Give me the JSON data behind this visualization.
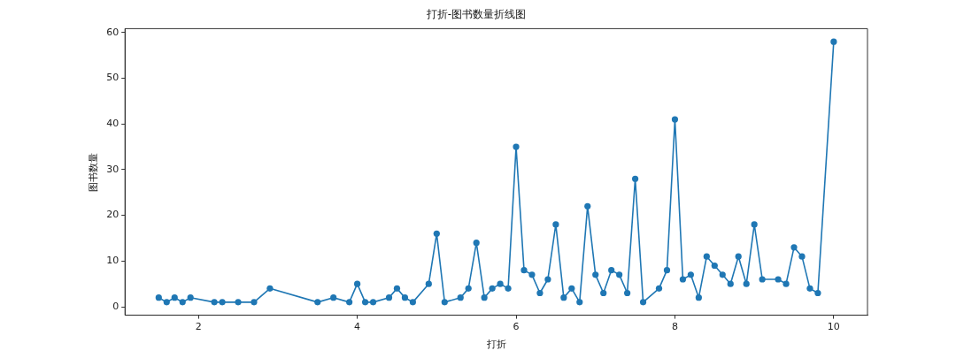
{
  "chart_data": {
    "type": "line",
    "title": "打折-图书数量折线图",
    "xlabel": "打折",
    "ylabel": "图书数量",
    "x": [
      1.5,
      1.6,
      1.7,
      1.8,
      1.9,
      2.2,
      2.3,
      2.5,
      2.7,
      2.9,
      3.5,
      3.7,
      3.9,
      4.0,
      4.1,
      4.2,
      4.4,
      4.5,
      4.6,
      4.7,
      4.9,
      5.0,
      5.1,
      5.3,
      5.4,
      5.5,
      5.6,
      5.7,
      5.8,
      5.9,
      6.0,
      6.1,
      6.2,
      6.3,
      6.4,
      6.5,
      6.6,
      6.7,
      6.8,
      6.9,
      7.0,
      7.1,
      7.2,
      7.3,
      7.4,
      7.5,
      7.6,
      7.8,
      7.9,
      8.0,
      8.1,
      8.2,
      8.3,
      8.4,
      8.5,
      8.6,
      8.7,
      8.8,
      8.9,
      9.0,
      9.1,
      9.3,
      9.4,
      9.5,
      9.6,
      9.7,
      9.8,
      10.0
    ],
    "series": [
      {
        "color": "#1f77b4",
        "values": [
          2,
          1,
          2,
          1,
          2,
          1,
          1,
          1,
          1,
          4,
          1,
          2,
          1,
          5,
          1,
          1,
          2,
          4,
          2,
          1,
          5,
          16,
          1,
          2,
          4,
          14,
          2,
          4,
          5,
          4,
          35,
          8,
          7,
          3,
          6,
          18,
          2,
          4,
          1,
          22,
          7,
          3,
          8,
          7,
          3,
          28,
          1,
          4,
          8,
          41,
          6,
          7,
          2,
          11,
          9,
          7,
          5,
          11,
          5,
          18,
          6,
          6,
          5,
          13,
          11,
          4,
          3,
          58
        ]
      }
    ],
    "xlim": [
      1.075,
      10.425
    ],
    "ylim": [
      -1.85,
      60.85
    ],
    "xticks": [
      2,
      4,
      6,
      8,
      10
    ],
    "yticks": [
      0,
      10,
      20,
      30,
      40,
      50,
      60
    ],
    "marker": "circle",
    "line_style": "solid",
    "grid": false,
    "legend": false
  }
}
